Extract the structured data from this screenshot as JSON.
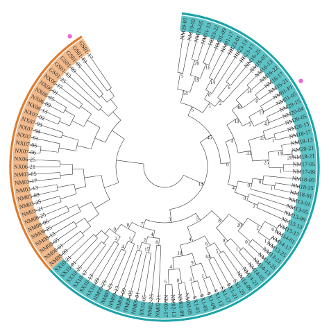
{
  "tree": {
    "clades": {
      "orange": {
        "color": "#e07a2f",
        "fill": "#f0b98b"
      },
      "teal": {
        "color": "#1aa3a8",
        "fill": "#5ec3c6"
      }
    },
    "markers": {
      "color": "#e86bd3"
    },
    "branch_color": "#333333",
    "leaves": [
      {
        "label": "NM19-01",
        "clade": "teal"
      },
      {
        "label": "NM19-02",
        "clade": "teal"
      },
      {
        "label": "NM19-05",
        "clade": "teal"
      },
      {
        "label": "NM01-13",
        "clade": "teal"
      },
      {
        "label": "HB23-22",
        "clade": "teal"
      },
      {
        "label": "NM01-09",
        "clade": "teal"
      },
      {
        "label": "NM01-17",
        "clade": "teal"
      },
      {
        "label": "HB23-01",
        "clade": "teal"
      },
      {
        "label": "HB23-13",
        "clade": "teal"
      },
      {
        "label": "HB23-17",
        "clade": "teal"
      },
      {
        "label": "NM16-25",
        "clade": "teal"
      },
      {
        "label": "NM16-05",
        "clade": "teal"
      },
      {
        "label": "NM16-13",
        "clade": "teal"
      },
      {
        "label": "NM16-22",
        "clade": "teal"
      },
      {
        "label": "NM16-17",
        "clade": "teal"
      },
      {
        "label": "NM16-21",
        "clade": "teal"
      },
      {
        "label": "NM01-PJ",
        "clade": "teal"
      },
      {
        "label": "NM01-05",
        "clade": "teal"
      },
      {
        "label": "NM20-15",
        "clade": "teal"
      },
      {
        "label": "NM20-04",
        "clade": "teal"
      },
      {
        "label": "NM20-05",
        "clade": "teal"
      },
      {
        "label": "NM20-13",
        "clade": "teal"
      },
      {
        "label": "NM18-17",
        "clade": "teal"
      },
      {
        "label": "NM18-13",
        "clade": "teal"
      },
      {
        "label": "NM20-21",
        "clade": "teal"
      },
      {
        "label": "NM18-21",
        "clade": "teal"
      },
      {
        "label": "NM17-05",
        "clade": "teal"
      },
      {
        "label": "NM17-09",
        "clade": "teal"
      },
      {
        "label": "NM18-09",
        "clade": "teal"
      },
      {
        "label": "NM18-25",
        "clade": "teal"
      },
      {
        "label": "NM18-01",
        "clade": "teal"
      },
      {
        "label": "NM13-01",
        "clade": "teal"
      },
      {
        "label": "NM13-05",
        "clade": "teal"
      },
      {
        "label": "NM13-09",
        "clade": "teal"
      },
      {
        "label": "NM13-13",
        "clade": "teal"
      },
      {
        "label": "NM13-17",
        "clade": "teal"
      },
      {
        "label": "NM14-01",
        "clade": "teal"
      },
      {
        "label": "NM14-17",
        "clade": "teal"
      },
      {
        "label": "NM13-25",
        "clade": "teal"
      },
      {
        "label": "NM13-21",
        "clade": "teal"
      },
      {
        "label": "NM14-25",
        "clade": "teal"
      },
      {
        "label": "NM14-13",
        "clade": "teal"
      },
      {
        "label": "NM14-05",
        "clade": "teal"
      },
      {
        "label": "NM14-21",
        "clade": "teal"
      },
      {
        "label": "NM14-09",
        "clade": "teal"
      },
      {
        "label": "SX1-25",
        "clade": "teal"
      },
      {
        "label": "SX1-21",
        "clade": "teal"
      },
      {
        "label": "SX1-17",
        "clade": "teal"
      },
      {
        "label": "SX1-13",
        "clade": "teal"
      },
      {
        "label": "SX1-09",
        "clade": "teal"
      },
      {
        "label": "SX1-05",
        "clade": "teal"
      },
      {
        "label": "SX1-01",
        "clade": "teal"
      },
      {
        "label": "NM02-05",
        "clade": "teal"
      },
      {
        "label": "NM02-09",
        "clade": "teal"
      },
      {
        "label": "NM02-13",
        "clade": "teal"
      },
      {
        "label": "NM02-17",
        "clade": "teal"
      },
      {
        "label": "NM02-21",
        "clade": "teal"
      },
      {
        "label": "NM02-25",
        "clade": "teal"
      },
      {
        "label": "SX10-05",
        "clade": "teal"
      },
      {
        "label": "NM09-01",
        "clade": "teal"
      },
      {
        "label": "NM09-05",
        "clade": "teal"
      },
      {
        "label": "NM09-09",
        "clade": "teal"
      },
      {
        "label": "NM09-13",
        "clade": "teal"
      },
      {
        "label": "NM09-21",
        "clade": "teal"
      },
      {
        "label": "NM09-25",
        "clade": "teal"
      },
      {
        "label": "SX10-09",
        "clade": "teal"
      },
      {
        "label": "SX10-13",
        "clade": "teal"
      },
      {
        "label": "SX10-17",
        "clade": "teal"
      },
      {
        "label": "SX10-25",
        "clade": "teal"
      },
      {
        "label": "SX10-01",
        "clade": "teal"
      },
      {
        "label": "SX10-21",
        "clade": "teal"
      },
      {
        "label": "NM08-09",
        "clade": "orange"
      },
      {
        "label": "NM08-01",
        "clade": "orange"
      },
      {
        "label": "NM08-05",
        "clade": "orange"
      },
      {
        "label": "NM08-13",
        "clade": "orange"
      },
      {
        "label": "NM08-25",
        "clade": "orange"
      },
      {
        "label": "NM08-06",
        "clade": "orange"
      },
      {
        "label": "NM08-25",
        "clade": "orange"
      },
      {
        "label": "NM03-21",
        "clade": "orange"
      },
      {
        "label": "NM03-25",
        "clade": "orange"
      },
      {
        "label": "NM03-09",
        "clade": "orange"
      },
      {
        "label": "NM03-13",
        "clade": "orange"
      },
      {
        "label": "NM03-17",
        "clade": "orange"
      },
      {
        "label": "NM03-05",
        "clade": "orange"
      },
      {
        "label": "NX06-21",
        "clade": "orange"
      },
      {
        "label": "NX06-25",
        "clade": "orange"
      },
      {
        "label": "NX07-06",
        "clade": "orange"
      },
      {
        "label": "NX07-05",
        "clade": "orange"
      },
      {
        "label": "NX07-01",
        "clade": "orange"
      },
      {
        "label": "NX07-04",
        "clade": "orange"
      },
      {
        "label": "NX07-03",
        "clade": "orange"
      },
      {
        "label": "NX07-02",
        "clade": "orange"
      },
      {
        "label": "NX06-13",
        "clade": "orange"
      },
      {
        "label": "NX06-09",
        "clade": "orange"
      },
      {
        "label": "NX06-05",
        "clade": "orange"
      },
      {
        "label": "NX06-01",
        "clade": "orange"
      },
      {
        "label": "NX06-17",
        "clade": "orange"
      },
      {
        "label": "GS01-25",
        "clade": "orange"
      },
      {
        "label": "GS01-13",
        "clade": "orange"
      },
      {
        "label": "GS01-09",
        "clade": "orange"
      },
      {
        "label": "GS01-05",
        "clade": "orange"
      },
      {
        "label": "GS01-PJ",
        "clade": "orange"
      },
      {
        "label": "GS01-17",
        "clade": "orange"
      }
    ],
    "bootstrap_labels": [
      "13",
      "45",
      "5",
      "54",
      "5",
      "19",
      "20",
      "16",
      "1",
      "0",
      "14",
      "2",
      "6",
      "0",
      "4",
      "19",
      "48",
      "14",
      "0",
      "2",
      "19",
      "43",
      "33",
      "47",
      "1",
      "25",
      "19",
      "20",
      "1",
      "4",
      "0",
      "0",
      "1",
      "0",
      "2",
      "3",
      "5",
      "8",
      "20",
      "2",
      "0",
      "1",
      "0",
      "0",
      "1",
      "4",
      "6",
      "5",
      "34",
      "10",
      "9",
      "1",
      "3",
      "4",
      "0",
      "5",
      "7",
      "4",
      "8",
      "2",
      "15",
      "1",
      "0",
      "5",
      "4",
      "0",
      "2"
    ]
  }
}
